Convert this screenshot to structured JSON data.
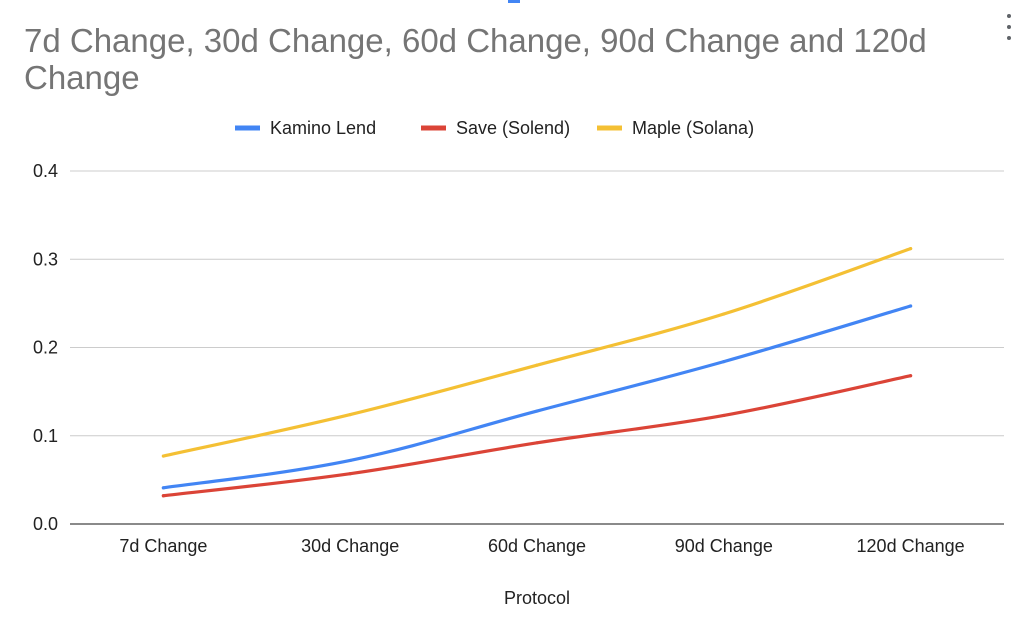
{
  "chart_data": {
    "type": "line",
    "title": "7d Change, 30d Change, 60d Change, 90d Change and 120d Change",
    "xlabel": "Protocol",
    "ylabel": "",
    "categories": [
      "7d Change",
      "30d Change",
      "60d Change",
      "90d Change",
      "120d Change"
    ],
    "ylim": [
      0,
      0.4
    ],
    "yticks": [
      "0.0",
      "0.1",
      "0.2",
      "0.3",
      "0.4"
    ],
    "grid": true,
    "legend_position": "top",
    "series": [
      {
        "name": "Kamino Lend",
        "color": "#4285f4",
        "values": [
          0.041,
          0.072,
          0.128,
          0.184,
          0.247
        ]
      },
      {
        "name": "Save (Solend)",
        "color": "#db4437",
        "values": [
          0.032,
          0.057,
          0.092,
          0.123,
          0.168
        ]
      },
      {
        "name": "Maple (Solana)",
        "color": "#f4c034",
        "values": [
          0.077,
          0.124,
          0.18,
          0.238,
          0.312
        ]
      }
    ]
  },
  "menu": {
    "icon": "more-vert-icon"
  }
}
